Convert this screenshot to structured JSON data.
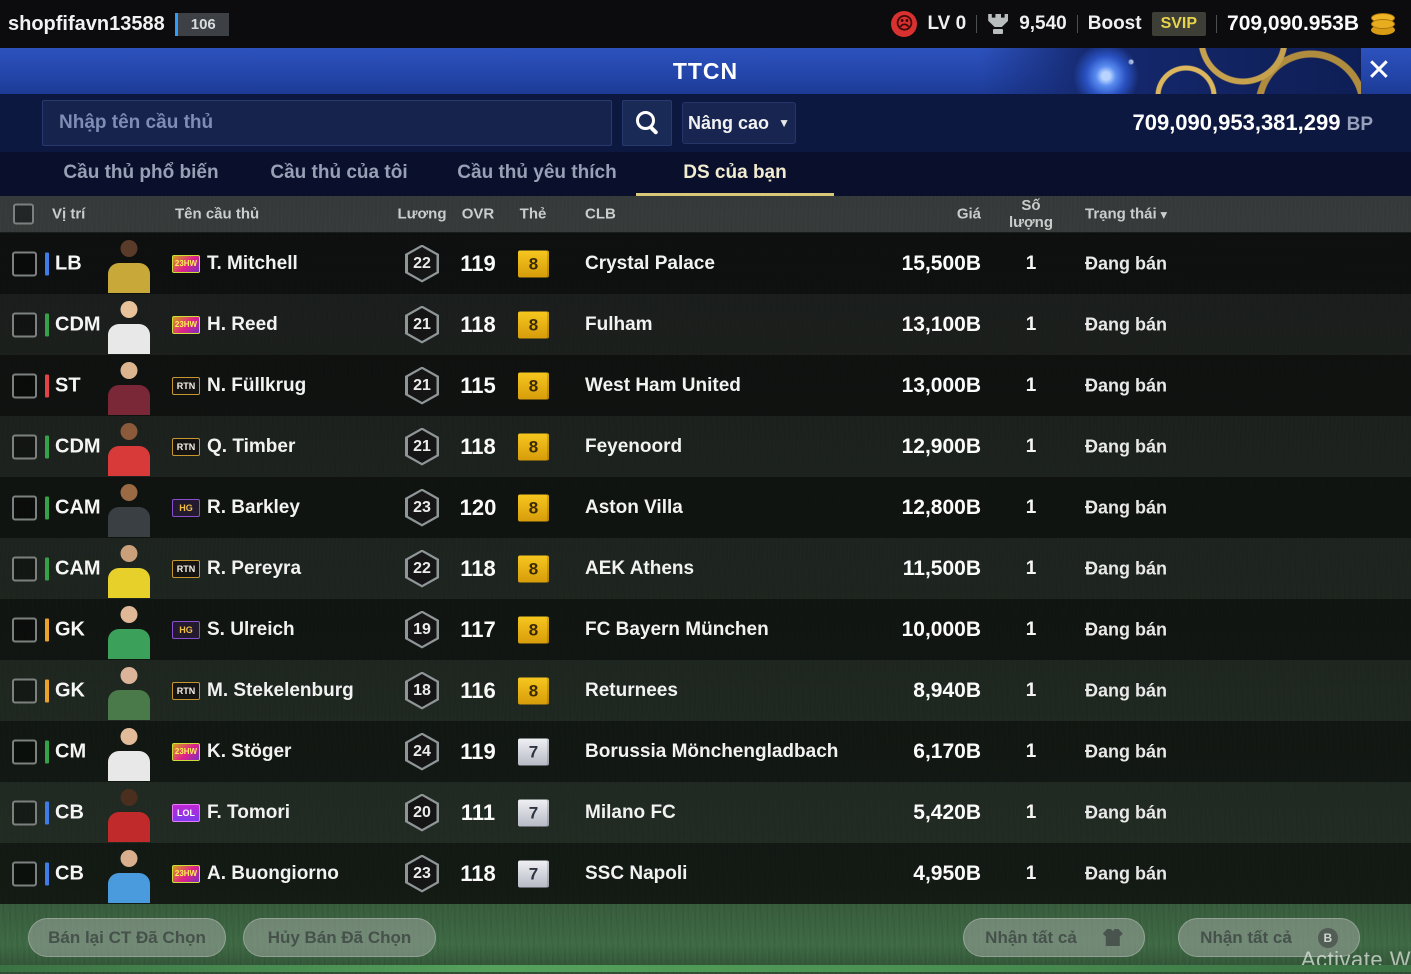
{
  "icons": {
    "close": "✕",
    "chevron_down": "▼",
    "sad_face": "☹",
    "sort_down": "▾",
    "coin_b": "B"
  },
  "top_bar": {
    "username": "shopfifavn13588",
    "level_badge": "106",
    "lv_label": "LV 0",
    "trophy_count": "9,540",
    "boost_label": "Boost",
    "svip_label": "SVIP",
    "bp_short": "709,090.953B"
  },
  "title_bar": {
    "title": "TTCN"
  },
  "search": {
    "placeholder": "Nhập tên cầu thủ",
    "advanced_label": "Nâng cao",
    "bp_full": "709,090,953,381,299",
    "bp_unit": "BP"
  },
  "tabs": [
    {
      "label": "Cầu thủ phổ biến",
      "active": false
    },
    {
      "label": "Cầu thủ của tôi",
      "active": false
    },
    {
      "label": "Cầu thủ yêu thích",
      "active": false
    },
    {
      "label": "DS của bạn",
      "active": true
    }
  ],
  "table": {
    "headers": {
      "position": "Vị trí",
      "name": "Tên cầu thủ",
      "salary": "Lương",
      "ovr": "OVR",
      "card": "Thẻ",
      "club": "CLB",
      "price": "Giá",
      "quantity": "Số lượng",
      "status": "Trạng thái"
    },
    "rows": [
      {
        "position": "LB",
        "position_color": "#3f7ce8",
        "badge": "23HW",
        "badge_type": "hw",
        "name": "T. Mitchell",
        "salary": "22",
        "ovr": "119",
        "tier": "8",
        "tier_type": "gold",
        "club": "Crystal Palace",
        "price": "15,500B",
        "qty": "1",
        "status": "Đang bán",
        "jersey": "#c9a83a",
        "skin": "#5a3a28"
      },
      {
        "position": "CDM",
        "position_color": "#35a149",
        "badge": "23HW",
        "badge_type": "hw",
        "name": "H. Reed",
        "salary": "21",
        "ovr": "118",
        "tier": "8",
        "tier_type": "gold",
        "club": "Fulham",
        "price": "13,100B",
        "qty": "1",
        "status": "Đang bán",
        "jersey": "#e8e8e8",
        "skin": "#e8c29a"
      },
      {
        "position": "ST",
        "position_color": "#e04444",
        "badge": "RTN",
        "badge_type": "rtn",
        "name": "N. Füllkrug",
        "salary": "21",
        "ovr": "115",
        "tier": "8",
        "tier_type": "gold",
        "club": "West Ham United",
        "price": "13,000B",
        "qty": "1",
        "status": "Đang bán",
        "jersey": "#7a2838",
        "skin": "#dcb490"
      },
      {
        "position": "CDM",
        "position_color": "#35a149",
        "badge": "RTN",
        "badge_type": "rtn",
        "name": "Q. Timber",
        "salary": "21",
        "ovr": "118",
        "tier": "8",
        "tier_type": "gold",
        "club": "Feyenoord",
        "price": "12,900B",
        "qty": "1",
        "status": "Đang bán",
        "jersey": "#d83a3a",
        "skin": "#8a5a3a"
      },
      {
        "position": "CAM",
        "position_color": "#35a149",
        "badge": "HG",
        "badge_type": "hg",
        "name": "R. Barkley",
        "salary": "23",
        "ovr": "120",
        "tier": "8",
        "tier_type": "gold",
        "club": "Aston Villa",
        "price": "12,800B",
        "qty": "1",
        "status": "Đang bán",
        "jersey": "#3a3f44",
        "skin": "#9a6a44"
      },
      {
        "position": "CAM",
        "position_color": "#35a149",
        "badge": "RTN",
        "badge_type": "rtn",
        "name": "R. Pereyra",
        "salary": "22",
        "ovr": "118",
        "tier": "8",
        "tier_type": "gold",
        "club": "AEK Athens",
        "price": "11,500B",
        "qty": "1",
        "status": "Đang bán",
        "jersey": "#e8d02a",
        "skin": "#caa07a"
      },
      {
        "position": "GK",
        "position_color": "#eba12b",
        "badge": "HG",
        "badge_type": "hg",
        "name": "S. Ulreich",
        "salary": "19",
        "ovr": "117",
        "tier": "8",
        "tier_type": "gold",
        "club": "FC Bayern München",
        "price": "10,000B",
        "qty": "1",
        "status": "Đang bán",
        "jersey": "#3aa05a",
        "skin": "#e0b898"
      },
      {
        "position": "GK",
        "position_color": "#eba12b",
        "badge": "RTN",
        "badge_type": "rtn",
        "name": "M. Stekelenburg",
        "salary": "18",
        "ovr": "116",
        "tier": "8",
        "tier_type": "gold",
        "club": "Returnees",
        "price": "8,940B",
        "qty": "1",
        "status": "Đang bán",
        "jersey": "#4a7a4a",
        "skin": "#dcb49a"
      },
      {
        "position": "CM",
        "position_color": "#35a149",
        "badge": "23HW",
        "badge_type": "hw",
        "name": "K. Stöger",
        "salary": "24",
        "ovr": "119",
        "tier": "7",
        "tier_type": "silver",
        "club": "Borussia Mönchengladbach",
        "price": "6,170B",
        "qty": "1",
        "status": "Đang bán",
        "jersey": "#e8e8e8",
        "skin": "#e2bb98"
      },
      {
        "position": "CB",
        "position_color": "#3f7ce8",
        "badge": "LOL",
        "badge_type": "lol",
        "name": "F. Tomori",
        "salary": "20",
        "ovr": "111",
        "tier": "7",
        "tier_type": "silver",
        "club": "Milano FC",
        "price": "5,420B",
        "qty": "1",
        "status": "Đang bán",
        "jersey": "#c02a2a",
        "skin": "#4a2e1e"
      },
      {
        "position": "CB",
        "position_color": "#3f7ce8",
        "badge": "23HW",
        "badge_type": "hw",
        "name": "A. Buongiorno",
        "salary": "23",
        "ovr": "118",
        "tier": "7",
        "tier_type": "silver",
        "club": "SSC Napoli",
        "price": "4,950B",
        "qty": "1",
        "status": "Đang bán",
        "jersey": "#4a9ade",
        "skin": "#d8ae8c"
      }
    ]
  },
  "footer": {
    "resell_label": "Bán lại CT Đã Chọn",
    "cancel_label": "Hủy Bán Đã Chọn",
    "claim_players_label": "Nhận tất cả",
    "claim_bp_label": "Nhận tất cả"
  },
  "watermark": "Activate W"
}
